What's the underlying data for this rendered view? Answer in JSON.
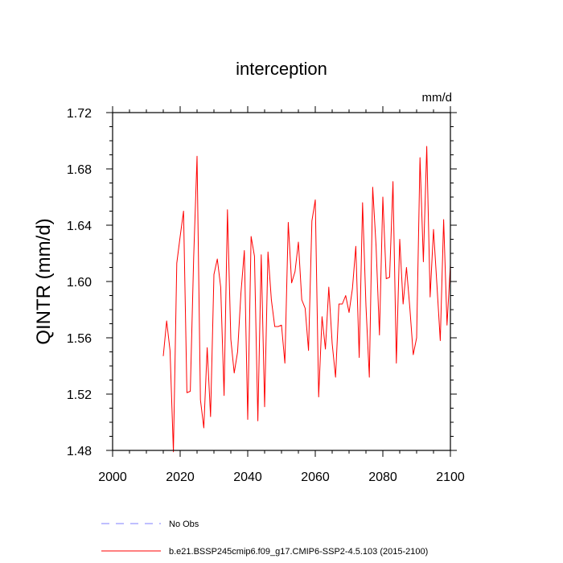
{
  "chart_data": {
    "type": "line",
    "title": "interception",
    "units": "mm/d",
    "xlabel": "",
    "ylabel": "QINTR  (mm/d)",
    "xlim": [
      2000,
      2100
    ],
    "ylim": [
      1.48,
      1.72
    ],
    "x_ticks": [
      2000,
      2020,
      2040,
      2060,
      2080,
      2100
    ],
    "x_tick_labels": [
      "2000",
      "2020",
      "2040",
      "2060",
      "2080",
      "2100"
    ],
    "y_ticks": [
      1.48,
      1.52,
      1.56,
      1.6,
      1.64,
      1.68,
      1.72
    ],
    "y_tick_labels": [
      "1.48",
      "1.52",
      "1.56",
      "1.60",
      "1.64",
      "1.68",
      "1.72"
    ],
    "grid": false,
    "legend_position": "bottom",
    "series": [
      {
        "name": "b.e21.BSSP245cmip6.f09_g17.CMIP6-SSP2-4.5.103 (2015-2100)",
        "color": "#ff0000",
        "style": "solid",
        "x": [
          2015,
          2016,
          2017,
          2018,
          2019,
          2020,
          2021,
          2022,
          2023,
          2024,
          2025,
          2026,
          2027,
          2028,
          2029,
          2030,
          2031,
          2032,
          2033,
          2034,
          2035,
          2036,
          2037,
          2038,
          2039,
          2040,
          2041,
          2042,
          2043,
          2044,
          2045,
          2046,
          2047,
          2048,
          2049,
          2050,
          2051,
          2052,
          2053,
          2054,
          2055,
          2056,
          2057,
          2058,
          2059,
          2060,
          2061,
          2062,
          2063,
          2064,
          2065,
          2066,
          2067,
          2068,
          2069,
          2070,
          2071,
          2072,
          2073,
          2074,
          2075,
          2076,
          2077,
          2078,
          2079,
          2080,
          2081,
          2082,
          2083,
          2084,
          2085,
          2086,
          2087,
          2088,
          2089,
          2090,
          2091,
          2092,
          2093,
          2094,
          2095,
          2096,
          2097,
          2098,
          2099,
          2100
        ],
        "values": [
          1.547,
          1.572,
          1.551,
          1.479,
          1.613,
          1.632,
          1.65,
          1.521,
          1.522,
          1.617,
          1.689,
          1.516,
          1.496,
          1.553,
          1.504,
          1.605,
          1.616,
          1.596,
          1.519,
          1.651,
          1.559,
          1.535,
          1.55,
          1.592,
          1.622,
          1.502,
          1.632,
          1.618,
          1.501,
          1.619,
          1.511,
          1.621,
          1.587,
          1.568,
          1.568,
          1.569,
          1.542,
          1.642,
          1.599,
          1.607,
          1.628,
          1.587,
          1.581,
          1.551,
          1.643,
          1.658,
          1.518,
          1.575,
          1.552,
          1.596,
          1.556,
          1.532,
          1.584,
          1.584,
          1.59,
          1.578,
          1.595,
          1.625,
          1.546,
          1.656,
          1.583,
          1.532,
          1.667,
          1.625,
          1.562,
          1.66,
          1.602,
          1.603,
          1.671,
          1.542,
          1.63,
          1.584,
          1.61,
          1.581,
          1.548,
          1.56,
          1.688,
          1.614,
          1.696,
          1.589,
          1.637,
          1.598,
          1.558,
          1.644,
          1.569,
          1.612
        ]
      },
      {
        "name": "No Obs",
        "color": "#7f7fff",
        "style": "dashed",
        "x": [],
        "values": []
      }
    ]
  }
}
